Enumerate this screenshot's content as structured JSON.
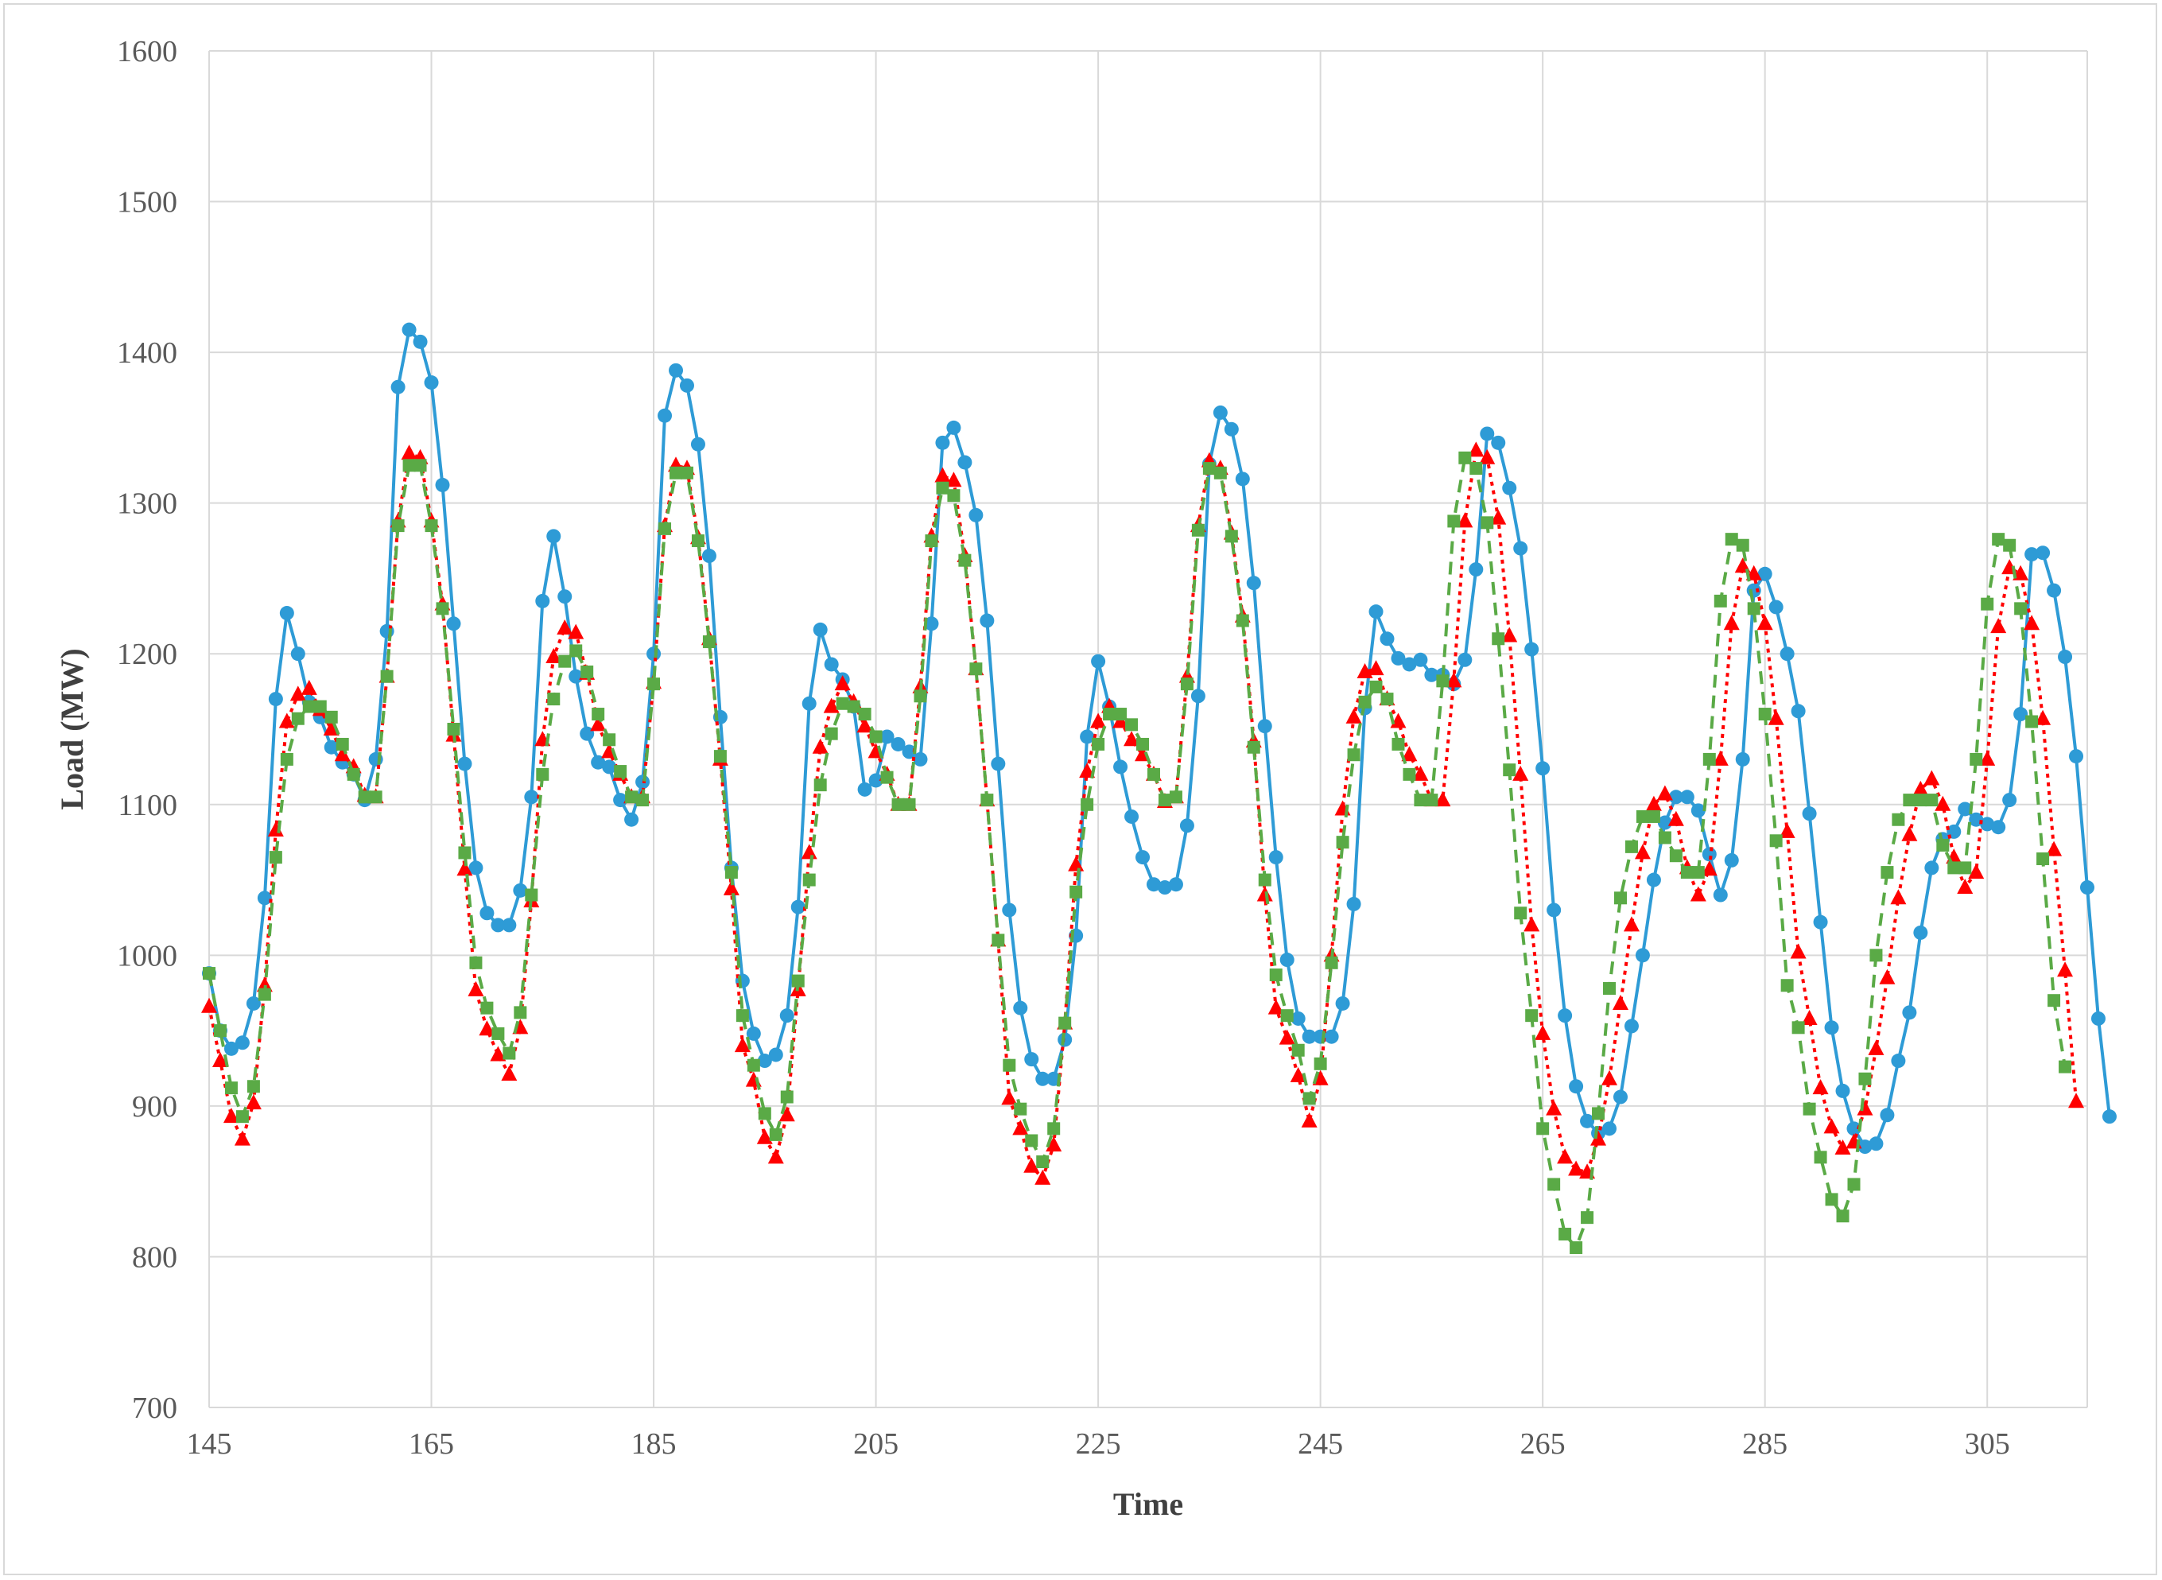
{
  "chart_data": {
    "type": "line",
    "title": "",
    "xlabel": "Time",
    "ylabel": "Load (MW)",
    "xlim": [
      145,
      314
    ],
    "ylim": [
      700,
      1600
    ],
    "x_ticks": [
      145,
      165,
      185,
      205,
      225,
      245,
      265,
      285,
      305
    ],
    "y_ticks": [
      700,
      800,
      900,
      1000,
      1100,
      1200,
      1300,
      1400,
      1500,
      1600
    ],
    "grid": true,
    "legend": "none",
    "x_start": 145,
    "series": [
      {
        "color": "#2e9bd6",
        "marker": "circle",
        "line": "solid",
        "values": [
          988,
          950,
          938,
          942,
          968,
          1038,
          1170,
          1227,
          1200,
          1168,
          1158,
          1138,
          1128,
          1120,
          1103,
          1130,
          1215,
          1377,
          1415,
          1407,
          1380,
          1312,
          1220,
          1127,
          1058,
          1028,
          1020,
          1020,
          1043,
          1105,
          1235,
          1278,
          1238,
          1185,
          1147,
          1128,
          1125,
          1103,
          1090,
          1115,
          1200,
          1358,
          1388,
          1378,
          1339,
          1265,
          1158,
          1058,
          983,
          948,
          930,
          934,
          960,
          1032,
          1167,
          1216,
          1193,
          1183,
          1165,
          1110,
          1116,
          1145,
          1140,
          1135,
          1130,
          1220,
          1340,
          1350,
          1327,
          1292,
          1222,
          1127,
          1030,
          965,
          931,
          918,
          918,
          944,
          1013,
          1145,
          1195,
          1165,
          1125,
          1092,
          1065,
          1047,
          1045,
          1047,
          1086,
          1172,
          1326,
          1360,
          1349,
          1316,
          1247,
          1152,
          1065,
          997,
          958,
          946,
          946,
          946,
          968,
          1034,
          1164,
          1228,
          1210,
          1197,
          1193,
          1196,
          1186,
          1186,
          1180,
          1196,
          1256,
          1346,
          1340,
          1310,
          1270,
          1203,
          1124,
          1030,
          960,
          913,
          890,
          882,
          885,
          906,
          953,
          1000,
          1050,
          1088,
          1105,
          1105,
          1096,
          1067,
          1040,
          1063,
          1130,
          1242,
          1253,
          1231,
          1200,
          1162,
          1094,
          1022,
          952,
          910,
          885,
          873,
          875,
          894,
          930,
          962,
          1015,
          1058,
          1077,
          1082,
          1097,
          1090,
          1087,
          1085,
          1103,
          1160,
          1266,
          1267,
          1242,
          1198,
          1132,
          1045,
          958,
          893
        ]
      },
      {
        "color": "#ff0000",
        "marker": "triangle",
        "line": "dotted",
        "values": [
          966,
          930,
          893,
          878,
          902,
          980,
          1083,
          1155,
          1173,
          1177,
          1163,
          1150,
          1133,
          1125,
          1106,
          1105,
          1185,
          1288,
          1333,
          1330,
          1288,
          1233,
          1146,
          1057,
          977,
          951,
          934,
          921,
          952,
          1036,
          1143,
          1198,
          1217,
          1214,
          1187,
          1153,
          1135,
          1120,
          1105,
          1105,
          1181,
          1285,
          1325,
          1323,
          1277,
          1210,
          1130,
          1044,
          940,
          917,
          879,
          866,
          894,
          977,
          1068,
          1138,
          1165,
          1180,
          1168,
          1152,
          1135,
          1120,
          1100,
          1100,
          1178,
          1278,
          1318,
          1315,
          1265,
          1190,
          1103,
          1010,
          905,
          885,
          860,
          852,
          874,
          955,
          1060,
          1122,
          1155,
          1165,
          1155,
          1143,
          1133,
          1120,
          1102,
          1105,
          1185,
          1285,
          1328,
          1323,
          1280,
          1225,
          1142,
          1040,
          965,
          945,
          920,
          890,
          918,
          1000,
          1097,
          1158,
          1188,
          1190,
          1170,
          1155,
          1133,
          1120,
          1103,
          1103,
          1182,
          1288,
          1335,
          1330,
          1290,
          1212,
          1120,
          1020,
          948,
          898,
          866,
          858,
          856,
          878,
          918,
          968,
          1020,
          1068,
          1100,
          1107,
          1090,
          1058,
          1040,
          1057,
          1130,
          1220,
          1258,
          1253,
          1220,
          1157,
          1082,
          1002,
          958,
          912,
          886,
          872,
          876,
          898,
          938,
          985,
          1038,
          1080,
          1110,
          1117,
          1100,
          1065,
          1045,
          1055,
          1130,
          1218,
          1257,
          1253,
          1220,
          1157,
          1070,
          990,
          903
        ]
      },
      {
        "color": "#5aaa46",
        "marker": "square",
        "line": "dashed",
        "values": [
          988,
          950,
          912,
          893,
          913,
          974,
          1065,
          1130,
          1157,
          1165,
          1165,
          1158,
          1140,
          1120,
          1105,
          1105,
          1185,
          1285,
          1325,
          1325,
          1285,
          1230,
          1150,
          1068,
          995,
          965,
          948,
          935,
          962,
          1040,
          1120,
          1170,
          1195,
          1202,
          1188,
          1160,
          1143,
          1122,
          1105,
          1103,
          1180,
          1283,
          1320,
          1320,
          1275,
          1208,
          1132,
          1055,
          960,
          927,
          895,
          881,
          906,
          983,
          1050,
          1113,
          1147,
          1167,
          1165,
          1160,
          1145,
          1118,
          1100,
          1100,
          1172,
          1275,
          1310,
          1305,
          1262,
          1190,
          1103,
          1010,
          927,
          898,
          877,
          863,
          885,
          955,
          1042,
          1100,
          1140,
          1160,
          1160,
          1153,
          1140,
          1120,
          1103,
          1105,
          1180,
          1282,
          1323,
          1320,
          1278,
          1222,
          1138,
          1050,
          987,
          960,
          937,
          905,
          928,
          995,
          1075,
          1133,
          1168,
          1178,
          1170,
          1140,
          1120,
          1103,
          1103,
          1182,
          1288,
          1330,
          1323,
          1287,
          1210,
          1123,
          1028,
          960,
          885,
          848,
          815,
          806,
          826,
          895,
          978,
          1038,
          1072,
          1092,
          1092,
          1078,
          1066,
          1055,
          1055,
          1130,
          1235,
          1276,
          1272,
          1230,
          1160,
          1076,
          980,
          952,
          898,
          866,
          838,
          827,
          848,
          918,
          1000,
          1055,
          1090,
          1103,
          1103,
          1103,
          1073,
          1058,
          1058,
          1130,
          1233,
          1276,
          1272,
          1230,
          1155,
          1064,
          970,
          926
        ]
      }
    ]
  }
}
